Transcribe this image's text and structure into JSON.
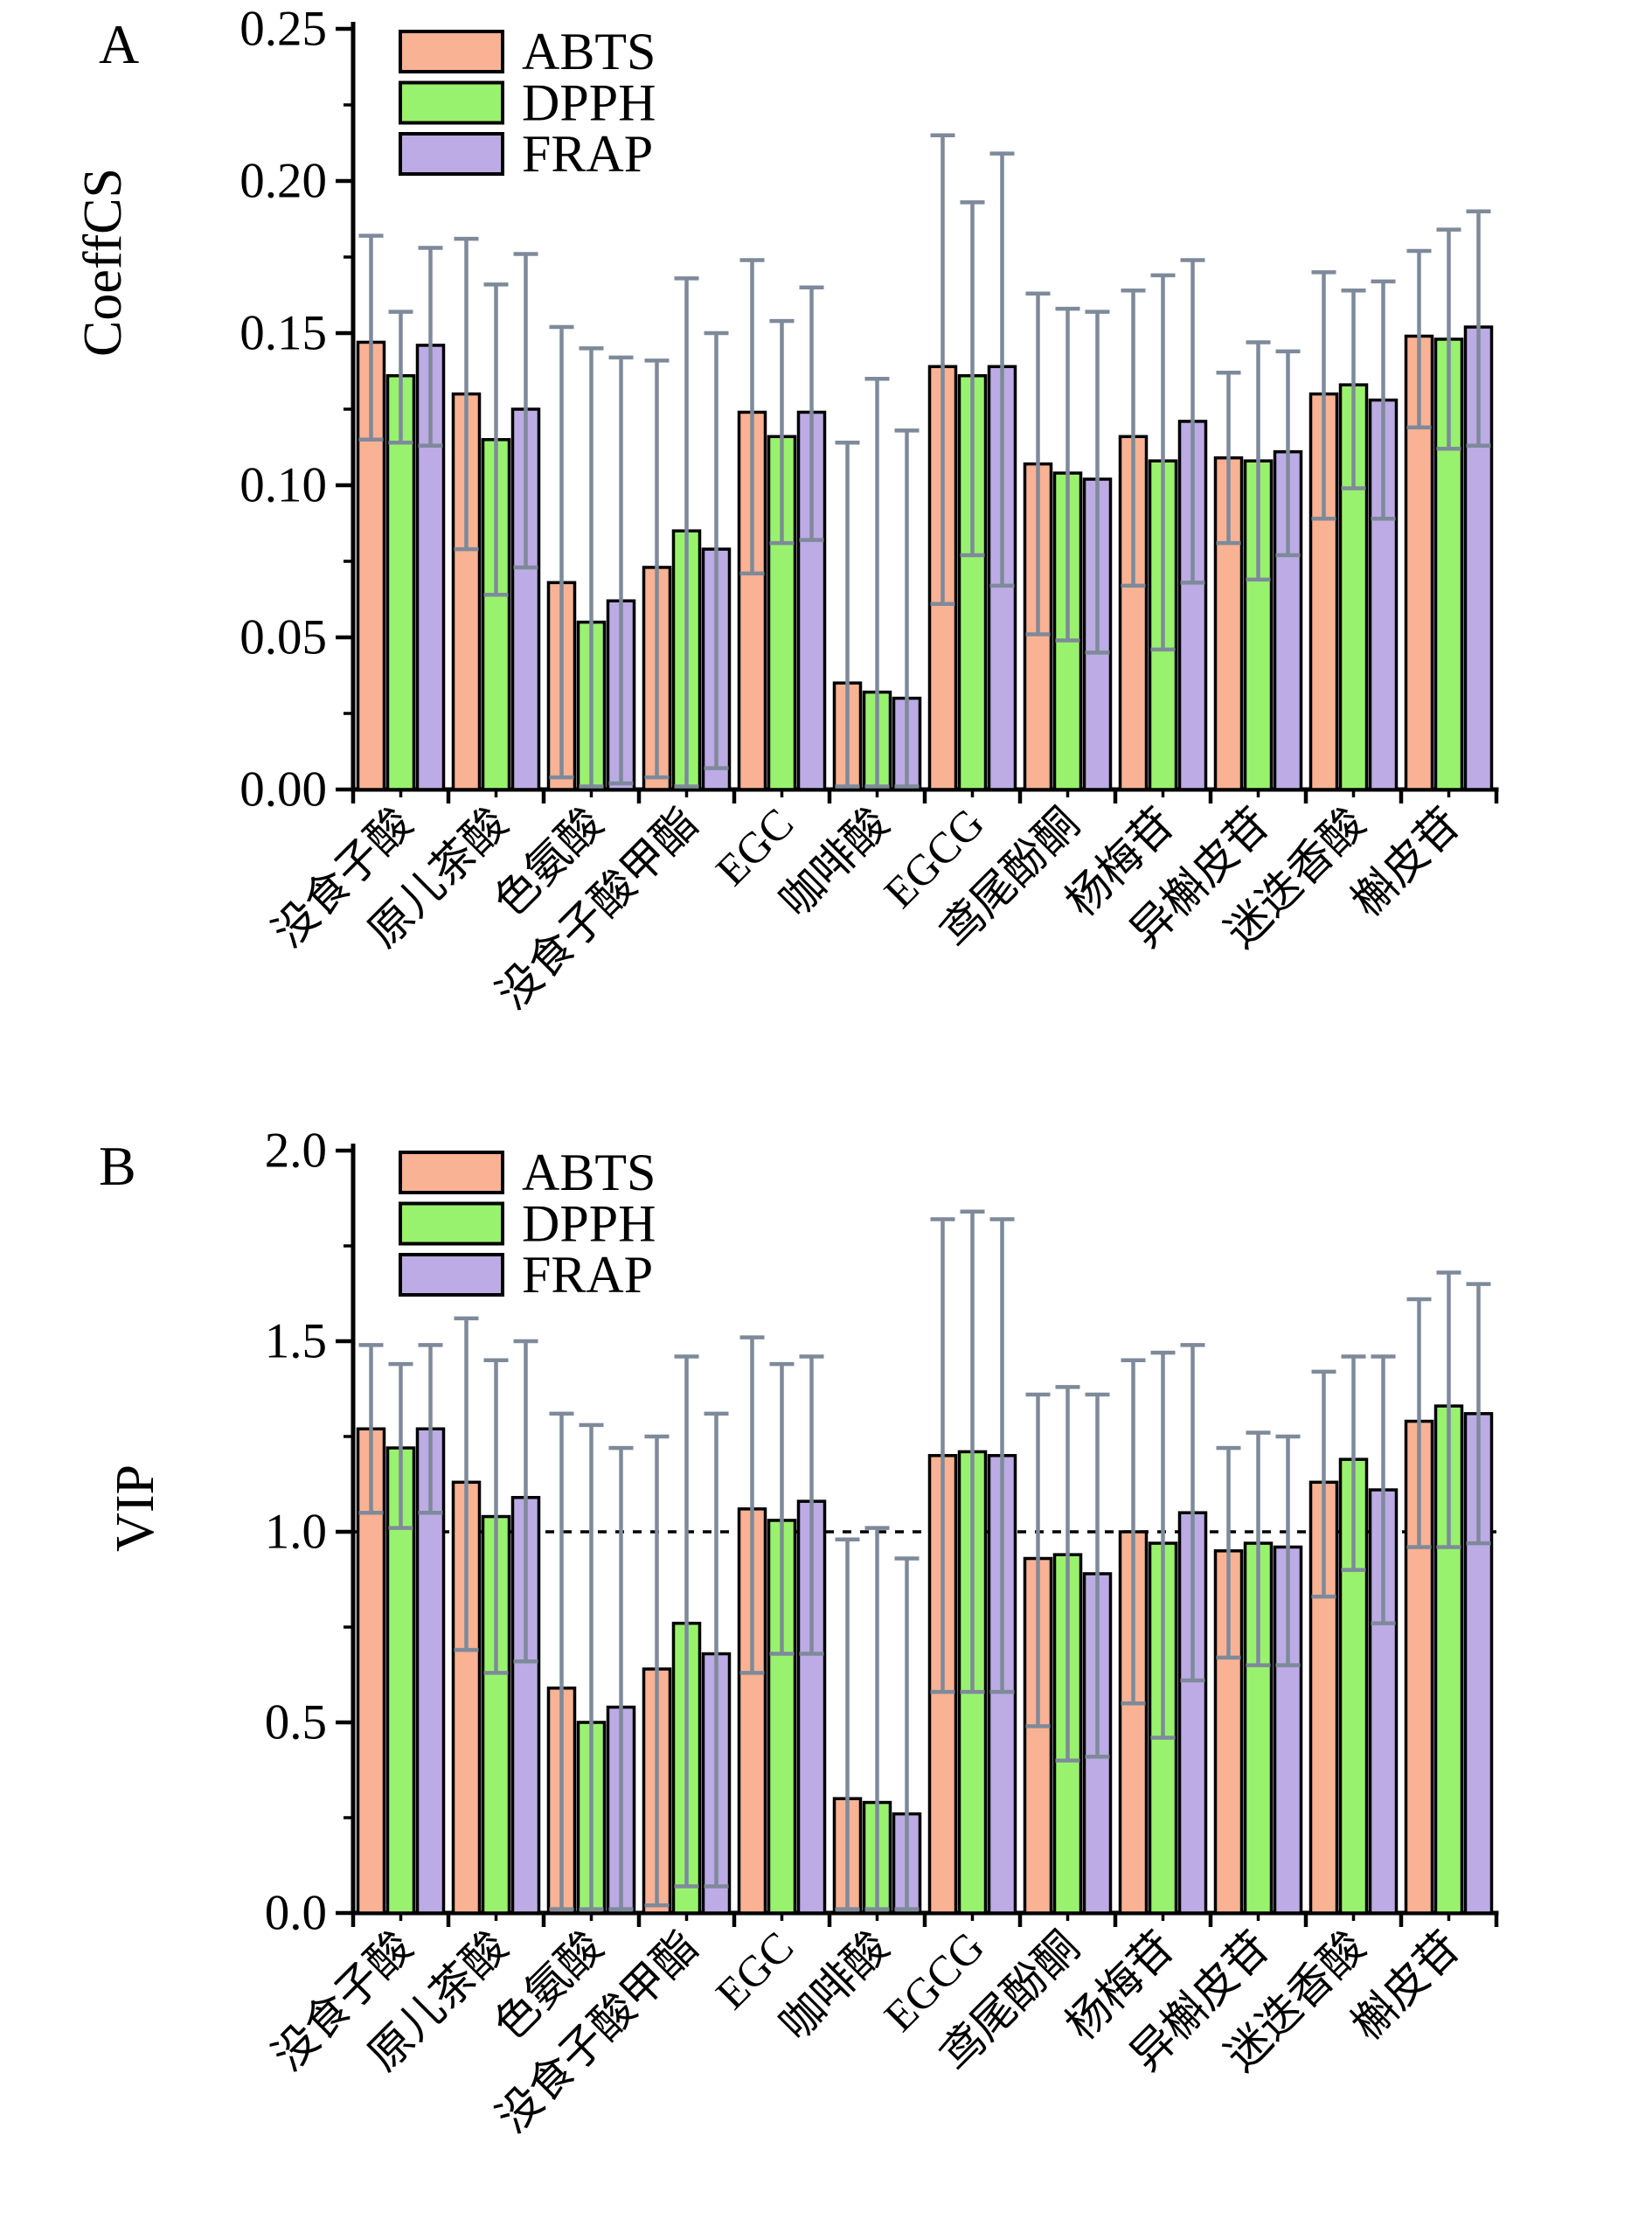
{
  "series_colors": {
    "ABTS": "#F9B293",
    "DPPH": "#99F26E",
    "FRAP": "#BCABE4"
  },
  "error_bar_color": "#7E8A9A",
  "axis_color": "#000000",
  "categories": [
    "没食子酸",
    "原儿茶酸",
    "色氨酸",
    "没食子酸甲酯",
    "EGC",
    "咖啡酸",
    "EGCG",
    "鸢尾酚酮",
    "杨梅苷",
    "异槲皮苷",
    "迷迭香酸",
    "槲皮苷"
  ],
  "chart_data": [
    {
      "type": "bar",
      "panel_label": "A",
      "ylabel": "CoeffCS",
      "xlabel": "",
      "ylim": [
        0,
        0.25
      ],
      "ytick_step": 0.05,
      "yminor_step": 0.025,
      "ytick_decimals": 2,
      "grid": false,
      "legend_position": "upper-left",
      "legend": [
        "ABTS",
        "DPPH",
        "FRAP"
      ],
      "categories": [
        "没食子酸",
        "原儿茶酸",
        "色氨酸",
        "没食子酸甲酯",
        "EGC",
        "咖啡酸",
        "EGCG",
        "鸢尾酚酮",
        "杨梅苷",
        "异槲皮苷",
        "迷迭香酸",
        "槲皮苷"
      ],
      "series": [
        {
          "name": "ABTS",
          "values": [
            0.147,
            0.13,
            0.068,
            0.073,
            0.124,
            0.035,
            0.139,
            0.107,
            0.116,
            0.109,
            0.13,
            0.149
          ],
          "err_top": [
            0.182,
            0.181,
            0.152,
            0.141,
            0.174,
            0.114,
            0.215,
            0.163,
            0.164,
            0.137,
            0.17,
            0.177
          ],
          "err_bot": [
            0.115,
            0.079,
            0.004,
            0.004,
            0.071,
            0.001,
            0.061,
            0.051,
            0.067,
            0.081,
            0.089,
            0.119
          ]
        },
        {
          "name": "DPPH",
          "values": [
            0.136,
            0.115,
            0.055,
            0.085,
            0.116,
            0.032,
            0.136,
            0.104,
            0.108,
            0.108,
            0.133,
            0.148
          ],
          "err_top": [
            0.157,
            0.166,
            0.145,
            0.168,
            0.154,
            0.135,
            0.193,
            0.158,
            0.169,
            0.147,
            0.164,
            0.184
          ],
          "err_bot": [
            0.114,
            0.064,
            0.001,
            0.001,
            0.081,
            0.001,
            0.077,
            0.049,
            0.046,
            0.069,
            0.099,
            0.112
          ]
        },
        {
          "name": "FRAP",
          "values": [
            0.146,
            0.125,
            0.062,
            0.079,
            0.124,
            0.03,
            0.139,
            0.102,
            0.121,
            0.111,
            0.128,
            0.152
          ],
          "err_top": [
            0.178,
            0.176,
            0.142,
            0.15,
            0.165,
            0.118,
            0.209,
            0.157,
            0.174,
            0.144,
            0.167,
            0.19
          ],
          "err_bot": [
            0.113,
            0.073,
            0.002,
            0.007,
            0.082,
            0.001,
            0.067,
            0.045,
            0.068,
            0.077,
            0.089,
            0.113
          ]
        }
      ]
    },
    {
      "type": "bar",
      "panel_label": "B",
      "ylabel": "VIP",
      "xlabel": "",
      "ylim": [
        0,
        2.0
      ],
      "ytick_step": 0.5,
      "yminor_step": 0.25,
      "ytick_decimals": 1,
      "grid": false,
      "ref_line": 1.0,
      "legend_position": "upper-left",
      "legend": [
        "ABTS",
        "DPPH",
        "FRAP"
      ],
      "categories": [
        "没食子酸",
        "原儿茶酸",
        "色氨酸",
        "没食子酸甲酯",
        "EGC",
        "咖啡酸",
        "EGCG",
        "鸢尾酚酮",
        "杨梅苷",
        "异槲皮苷",
        "迷迭香酸",
        "槲皮苷"
      ],
      "series": [
        {
          "name": "ABTS",
          "values": [
            1.27,
            1.13,
            0.59,
            0.64,
            1.06,
            0.3,
            1.2,
            0.93,
            1.0,
            0.95,
            1.13,
            1.29
          ],
          "err_top": [
            1.49,
            1.56,
            1.31,
            1.25,
            1.51,
            0.98,
            1.82,
            1.36,
            1.45,
            1.22,
            1.42,
            1.61
          ],
          "err_bot": [
            1.05,
            0.69,
            0.01,
            0.02,
            0.63,
            0.01,
            0.58,
            0.49,
            0.55,
            0.67,
            0.83,
            0.96
          ]
        },
        {
          "name": "DPPH",
          "values": [
            1.22,
            1.04,
            0.5,
            0.76,
            1.03,
            0.29,
            1.21,
            0.94,
            0.97,
            0.97,
            1.19,
            1.33
          ],
          "err_top": [
            1.44,
            1.45,
            1.28,
            1.46,
            1.44,
            1.01,
            1.84,
            1.38,
            1.47,
            1.26,
            1.46,
            1.68
          ],
          "err_bot": [
            1.01,
            0.63,
            0.01,
            0.07,
            0.68,
            0.01,
            0.58,
            0.4,
            0.46,
            0.65,
            0.9,
            0.96
          ]
        },
        {
          "name": "FRAP",
          "values": [
            1.27,
            1.09,
            0.54,
            0.68,
            1.08,
            0.26,
            1.2,
            0.89,
            1.05,
            0.96,
            1.11,
            1.31
          ],
          "err_top": [
            1.49,
            1.5,
            1.22,
            1.31,
            1.46,
            0.93,
            1.82,
            1.36,
            1.49,
            1.25,
            1.46,
            1.65
          ],
          "err_bot": [
            1.05,
            0.66,
            0.01,
            0.07,
            0.68,
            0.01,
            0.58,
            0.41,
            0.61,
            0.65,
            0.76,
            0.97
          ]
        }
      ]
    }
  ]
}
